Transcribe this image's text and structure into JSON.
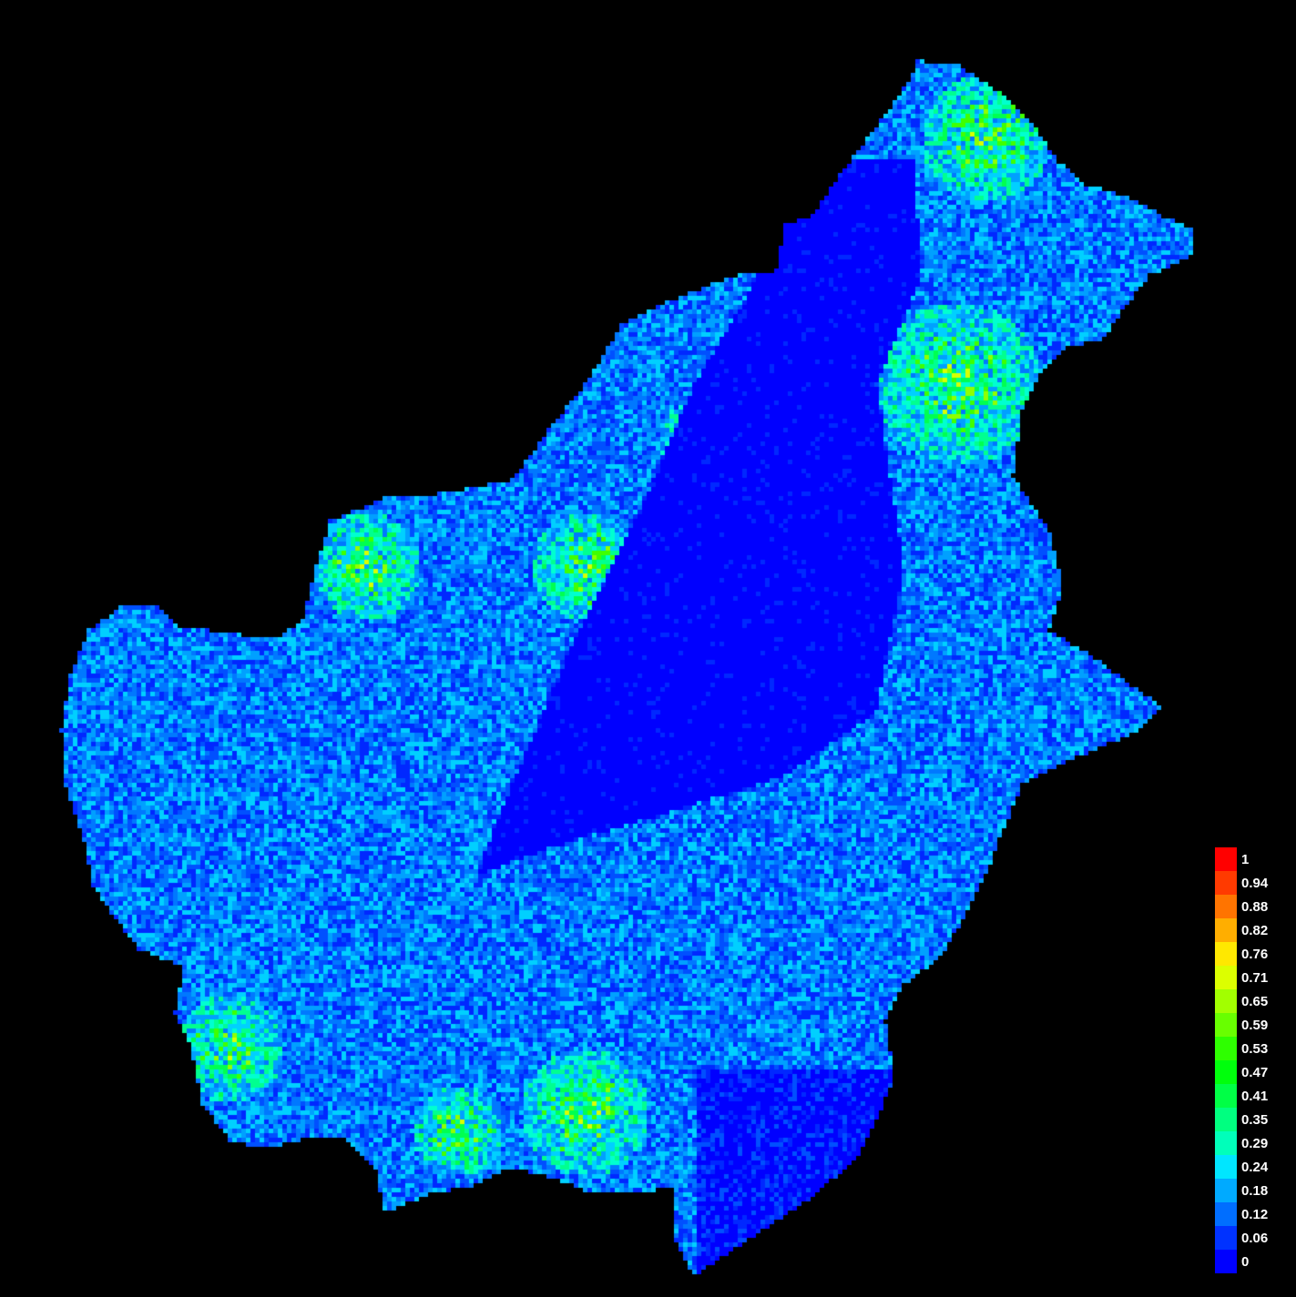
{
  "legend": {
    "entries": [
      {
        "label": "1",
        "color": "#ff0000"
      },
      {
        "label": "0.94",
        "color": "#ff3a00"
      },
      {
        "label": "0.88",
        "color": "#ff7400"
      },
      {
        "label": "0.82",
        "color": "#ffae00"
      },
      {
        "label": "0.76",
        "color": "#ffe800"
      },
      {
        "label": "0.71",
        "color": "#dcff00"
      },
      {
        "label": "0.65",
        "color": "#a2ff00"
      },
      {
        "label": "0.59",
        "color": "#68ff00"
      },
      {
        "label": "0.53",
        "color": "#2eff00"
      },
      {
        "label": "0.47",
        "color": "#00ff0c"
      },
      {
        "label": "0.41",
        "color": "#00ff46"
      },
      {
        "label": "0.35",
        "color": "#00ff80"
      },
      {
        "label": "0.29",
        "color": "#00ffba"
      },
      {
        "label": "0.24",
        "color": "#00e6ff"
      },
      {
        "label": "0.18",
        "color": "#00aaff"
      },
      {
        "label": "0.12",
        "color": "#006eff"
      },
      {
        "label": "0.06",
        "color": "#0032ff"
      },
      {
        "label": "0",
        "color": "#0000ff"
      }
    ]
  },
  "map": {
    "background_color": "#000000",
    "palette": [
      "#0000ff",
      "#0028ff",
      "#0050ff",
      "#0078ff",
      "#00a0ff",
      "#00d0ff",
      "#00ffd0",
      "#00ff90",
      "#00ff50",
      "#40ff00",
      "#90ff00",
      "#d8ff00"
    ]
  }
}
